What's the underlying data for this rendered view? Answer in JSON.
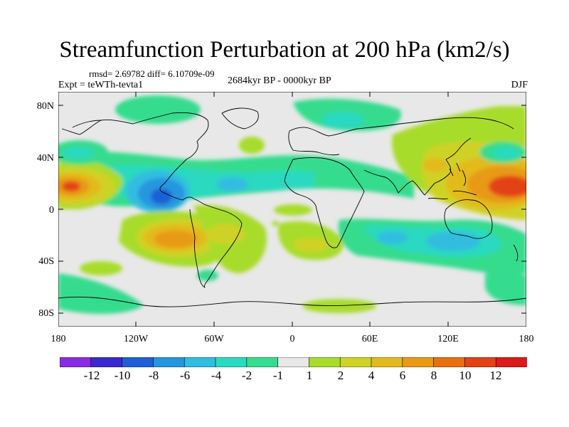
{
  "title": "Streamfunction Perturbation at 200 hPa (km2/s)",
  "stats": "rmsd= 2.69782 diff= 6.10709e-09",
  "experiment": "Expt = teWTh-tevta1",
  "period": "2684kyr BP - 0000kyr BP",
  "season": "DJF",
  "lat_labels": [
    "80N",
    "40N",
    "0",
    "40S",
    "80S"
  ],
  "lon_labels": [
    "180",
    "120W",
    "60W",
    "0",
    "60E",
    "120E",
    "180"
  ],
  "colorbar": {
    "labels": [
      "-12",
      "-10",
      "-8",
      "-6",
      "-4",
      "-2",
      "-1",
      "1",
      "2",
      "4",
      "6",
      "8",
      "10",
      "12"
    ],
    "colors": [
      "#8a2be2",
      "#3c28d0",
      "#1e5fd6",
      "#2596de",
      "#30bde0",
      "#2bd9c0",
      "#35dc8e",
      "#e8e8e8",
      "#a8dc2a",
      "#cfd227",
      "#e3ba1e",
      "#e89a15",
      "#e8700f",
      "#e24316",
      "#dc1a1a"
    ]
  },
  "map_data": {
    "field": "streamfunction perturbation",
    "units": "km2/s",
    "level_hPa": 200,
    "lon_range": [
      -180,
      180
    ],
    "lat_range": [
      -90,
      90
    ],
    "features": [
      {
        "name": "central-pacific-north-high",
        "lon": -175,
        "lat": 20,
        "value": 10
      },
      {
        "name": "east-pacific-low",
        "lon": -105,
        "lat": 12,
        "value": -9
      },
      {
        "name": "atlantic-low",
        "lon": -50,
        "lat": 15,
        "value": -4
      },
      {
        "name": "south-pacific-high",
        "lon": -95,
        "lat": -22,
        "value": 7
      },
      {
        "name": "west-pacific-high",
        "lon": 165,
        "lat": 18,
        "value": 9
      },
      {
        "name": "australia-low",
        "lon": 120,
        "lat": -25,
        "value": -4
      },
      {
        "name": "indian-ocean-low",
        "lon": 70,
        "lat": -20,
        "value": -3
      },
      {
        "name": "south-atlantic-positive",
        "lon": 10,
        "lat": -30,
        "value": 2
      },
      {
        "name": "south-america-positive",
        "lon": -60,
        "lat": -10,
        "value": 2
      },
      {
        "name": "north-pacific-low",
        "lon": -150,
        "lat": 45,
        "value": -3
      },
      {
        "name": "northeast-pacific-low",
        "lon": 165,
        "lat": 45,
        "value": -3
      },
      {
        "name": "europe-arctic-low",
        "lon": 30,
        "lat": 70,
        "value": -2
      },
      {
        "name": "arctic-canada-low",
        "lon": -120,
        "lat": 75,
        "value": -2
      },
      {
        "name": "east-asia-positive",
        "lon": 130,
        "lat": 55,
        "value": 2
      },
      {
        "name": "central-asia-positive",
        "lon": 75,
        "lat": 30,
        "value": 2
      },
      {
        "name": "north-atlantic-positive",
        "lon": -40,
        "lat": 45,
        "value": 2
      },
      {
        "name": "southern-ocean-positive",
        "lon": 10,
        "lat": -65,
        "value": 2
      },
      {
        "name": "southern-ocean-negative",
        "lon": 150,
        "lat": -55,
        "value": -2
      },
      {
        "name": "south-pacific-positive",
        "lon": -140,
        "lat": -35,
        "value": 2
      }
    ]
  }
}
